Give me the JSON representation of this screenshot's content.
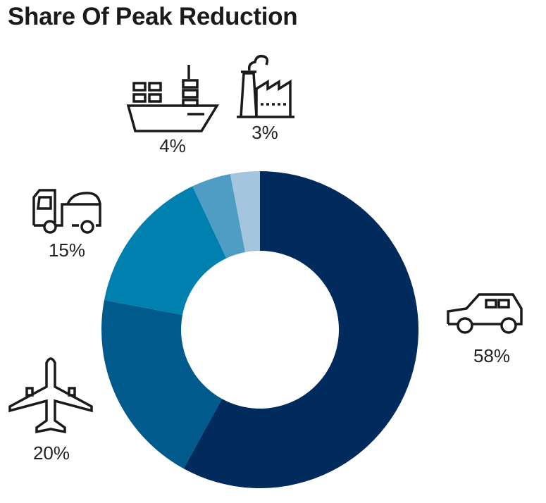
{
  "chart_data": {
    "type": "pie",
    "subtype": "donut",
    "title": "Share Of Peak Reduction",
    "slices": [
      {
        "label": "Cars",
        "icon": "car-icon",
        "value": 58,
        "text": "58%",
        "color": "#002B5C"
      },
      {
        "label": "Aviation",
        "icon": "airplane-icon",
        "value": 20,
        "text": "20%",
        "color": "#005A8C"
      },
      {
        "label": "Trucks",
        "icon": "truck-icon",
        "value": 15,
        "text": "15%",
        "color": "#0080AE"
      },
      {
        "label": "Shipping",
        "icon": "ship-icon",
        "value": 4,
        "text": "4%",
        "color": "#4F9DC4"
      },
      {
        "label": "Industry",
        "icon": "factory-icon",
        "value": 3,
        "text": "3%",
        "color": "#A3C6DE"
      }
    ],
    "start": "top",
    "direction": "clockwise"
  }
}
